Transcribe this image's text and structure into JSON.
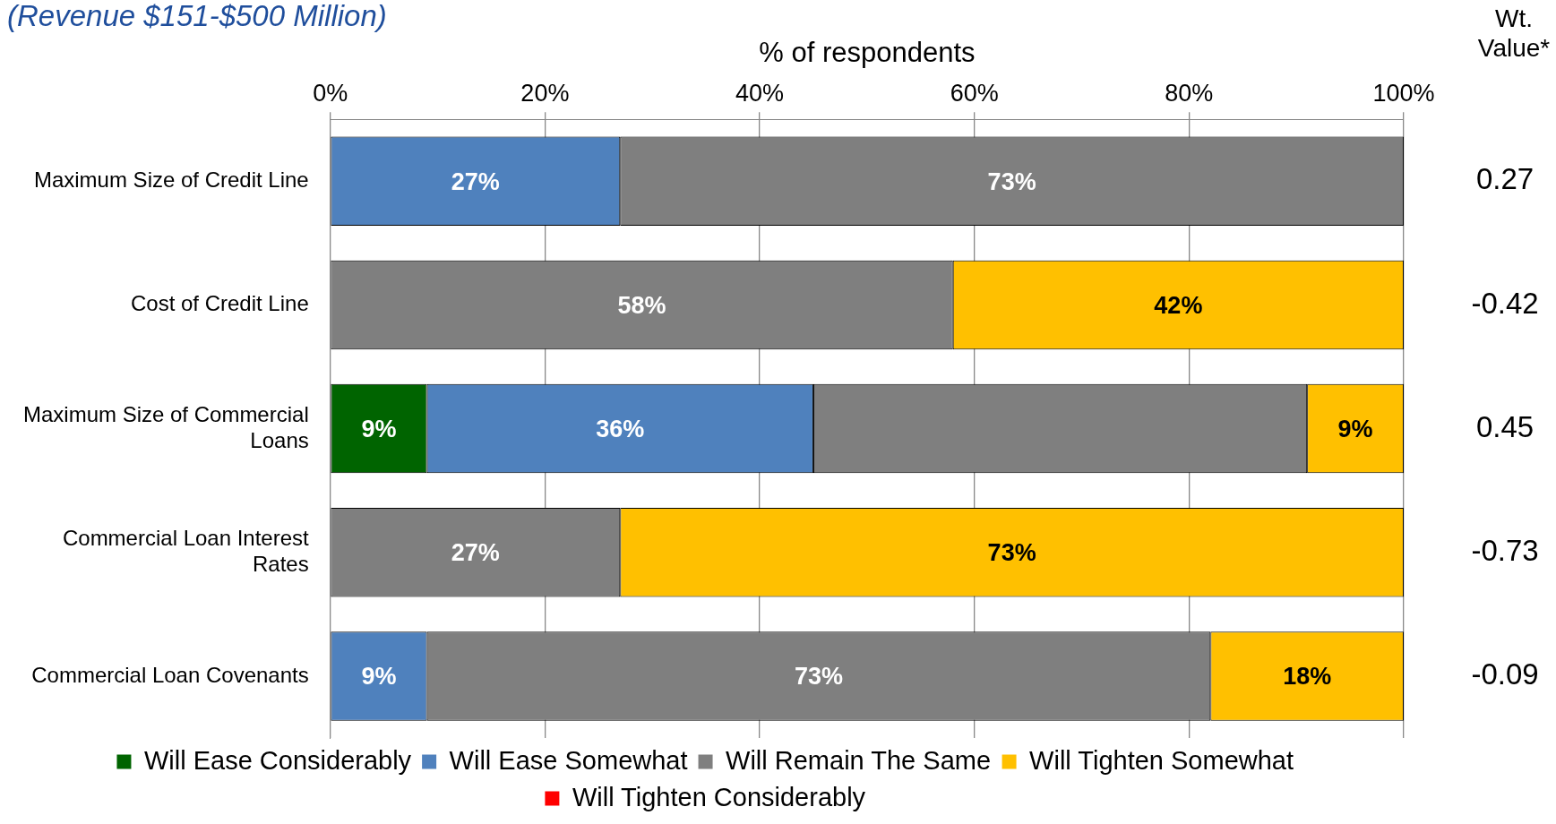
{
  "chart_data": {
    "type": "bar",
    "orientation": "horizontal",
    "stacked": true,
    "title": "(Revenue $151-$500 Million)",
    "xlabel": "% of respondents",
    "categories": [
      "Maximum Size of Credit Line",
      "Cost of Credit Line",
      "Maximum Size of Commercial Loans",
      "Commercial Loan Interest Rates",
      "Commercial Loan Covenants"
    ],
    "series": [
      {
        "name": "Will Ease Considerably",
        "color": "#006400",
        "values": [
          null,
          null,
          9,
          null,
          null
        ],
        "value_labels": [
          null,
          null,
          "9%",
          null,
          null
        ]
      },
      {
        "name": "Will Ease Somewhat",
        "color": "#4f81bd",
        "values": [
          27,
          null,
          36,
          null,
          9
        ],
        "value_labels": [
          "27%",
          null,
          "36%",
          null,
          "9%"
        ]
      },
      {
        "name": "Will Remain The Same",
        "color": "#7f7f7f",
        "values": [
          73,
          58,
          46,
          27,
          73
        ],
        "value_labels": [
          "73%",
          "58%",
          null,
          "27%",
          "73%"
        ]
      },
      {
        "name": "Will Tighten Somewhat",
        "color": "#ffc000",
        "values": [
          null,
          42,
          9,
          73,
          18
        ],
        "value_labels": [
          null,
          "42%",
          "9%",
          "73%",
          "18%"
        ]
      },
      {
        "name": "Will Tighten Considerably",
        "color": "#ff0000",
        "values": [
          null,
          null,
          null,
          null,
          null
        ]
      }
    ],
    "xlim": [
      0,
      100
    ],
    "xticks": [
      {
        "value": 0,
        "label": "0%"
      },
      {
        "value": 20,
        "label": "20%"
      },
      {
        "value": 40,
        "label": "40%"
      },
      {
        "value": 60,
        "label": "60%"
      },
      {
        "value": 80,
        "label": "80%"
      },
      {
        "value": 100,
        "label": "100%"
      }
    ],
    "grid": "x",
    "legend": "bottom",
    "annotations": [
      "Wt. Value*",
      "0.27",
      "-0.42",
      "0.45",
      "-0.73",
      "-0.09"
    ]
  }
}
